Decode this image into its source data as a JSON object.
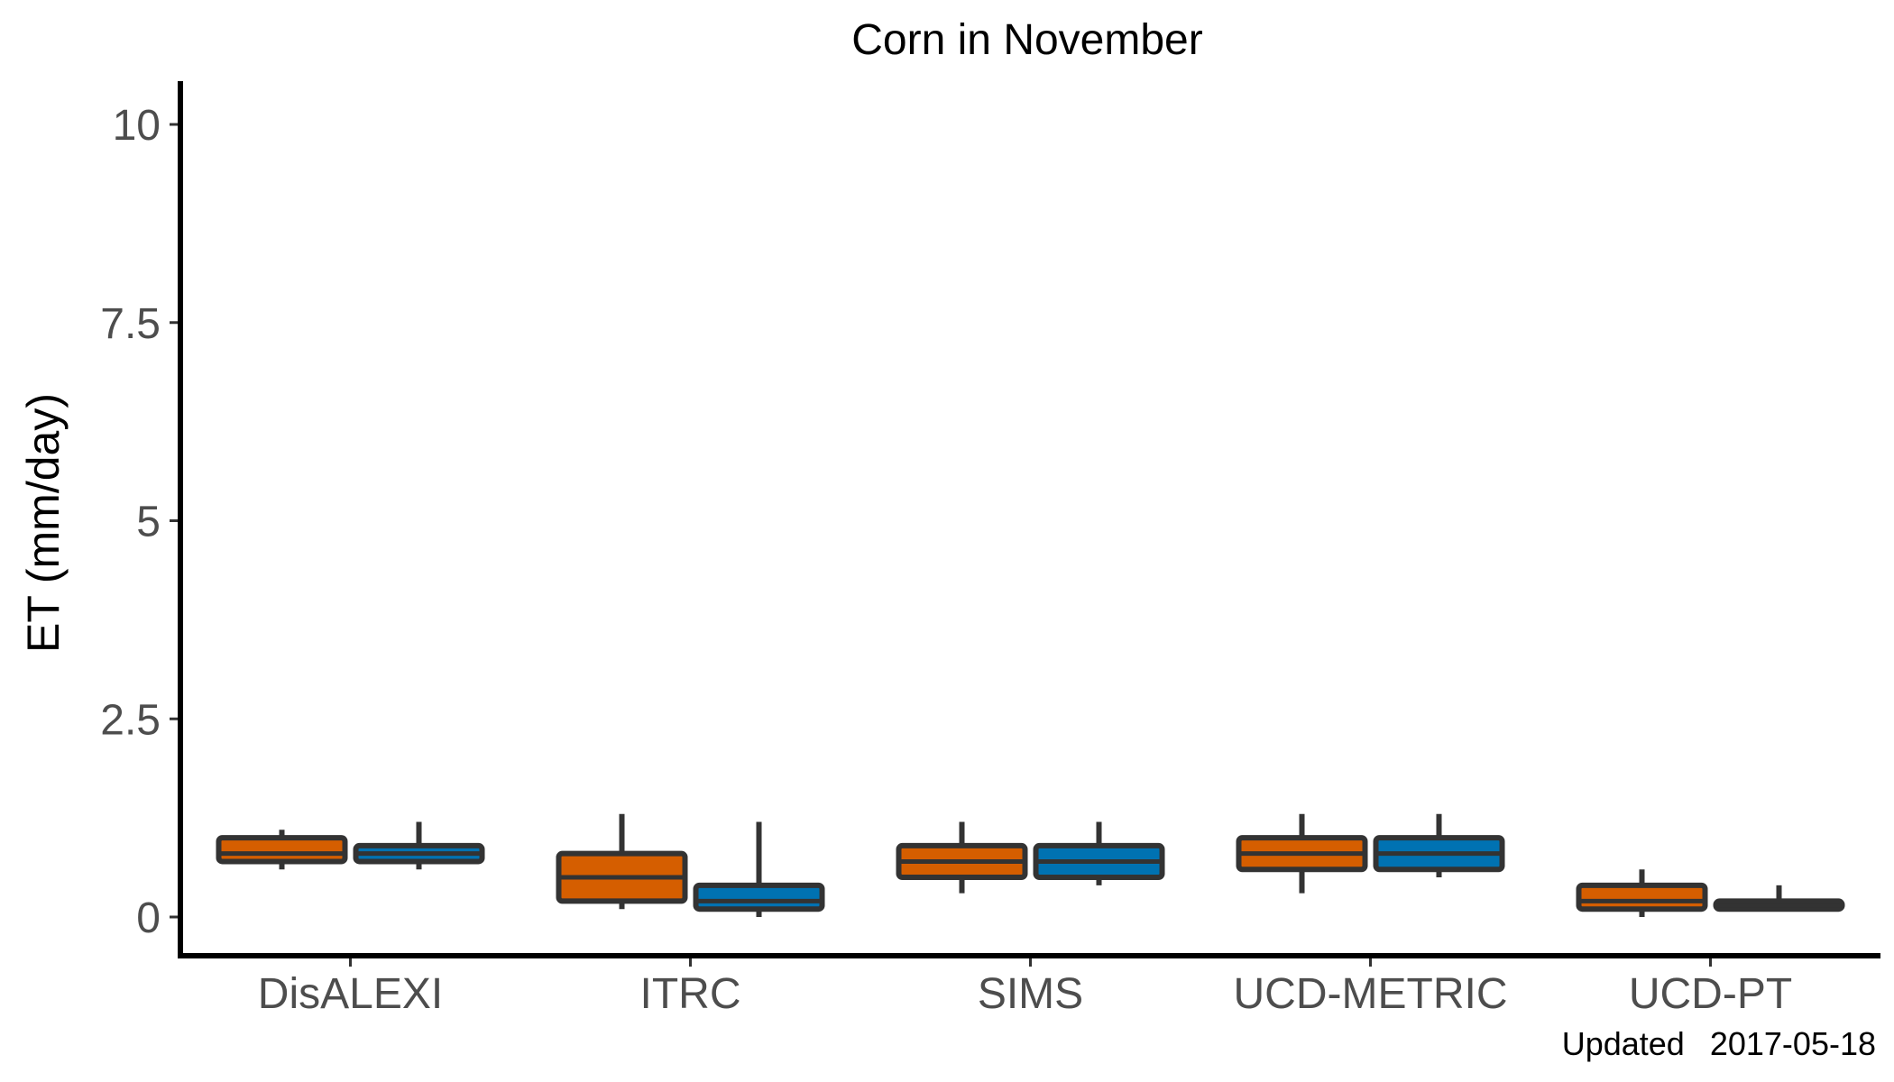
{
  "chart_data": {
    "type": "box",
    "title": "Corn in November",
    "xlabel": "",
    "ylabel": "ET (mm/day)",
    "ylim": [
      -0.5,
      10.5
    ],
    "yticks": [
      0,
      2.5,
      5,
      7.5,
      10
    ],
    "ytick_labels": [
      "0",
      "2.5",
      "5",
      "7.5",
      "10"
    ],
    "categories": [
      "DisALEXI",
      "ITRC",
      "SIMS",
      "UCD-METRIC",
      "UCD-PT"
    ],
    "grid": false,
    "legend": "none",
    "series": [
      {
        "color": "#D55E00",
        "boxes": [
          {
            "min": 0.6,
            "q1": 0.7,
            "median": 0.8,
            "q3": 1.0,
            "max": 1.1
          },
          {
            "min": 0.1,
            "q1": 0.2,
            "median": 0.5,
            "q3": 0.8,
            "max": 1.3
          },
          {
            "min": 0.3,
            "q1": 0.5,
            "median": 0.7,
            "q3": 0.9,
            "max": 1.2
          },
          {
            "min": 0.3,
            "q1": 0.6,
            "median": 0.8,
            "q3": 1.0,
            "max": 1.3
          },
          {
            "min": 0.0,
            "q1": 0.1,
            "median": 0.2,
            "q3": 0.4,
            "max": 0.6
          }
        ]
      },
      {
        "color": "#0072B2",
        "boxes": [
          {
            "min": 0.6,
            "q1": 0.7,
            "median": 0.8,
            "q3": 0.9,
            "max": 1.2
          },
          {
            "min": 0.0,
            "q1": 0.1,
            "median": 0.2,
            "q3": 0.4,
            "max": 1.2
          },
          {
            "min": 0.4,
            "q1": 0.5,
            "median": 0.7,
            "q3": 0.9,
            "max": 1.2
          },
          {
            "min": 0.5,
            "q1": 0.6,
            "median": 0.8,
            "q3": 1.0,
            "max": 1.3
          },
          {
            "min": 0.1,
            "q1": 0.1,
            "median": 0.15,
            "q3": 0.2,
            "max": 0.4
          }
        ]
      }
    ]
  },
  "footer": {
    "updated_label": "Updated",
    "updated_date": "2017-05-18"
  }
}
